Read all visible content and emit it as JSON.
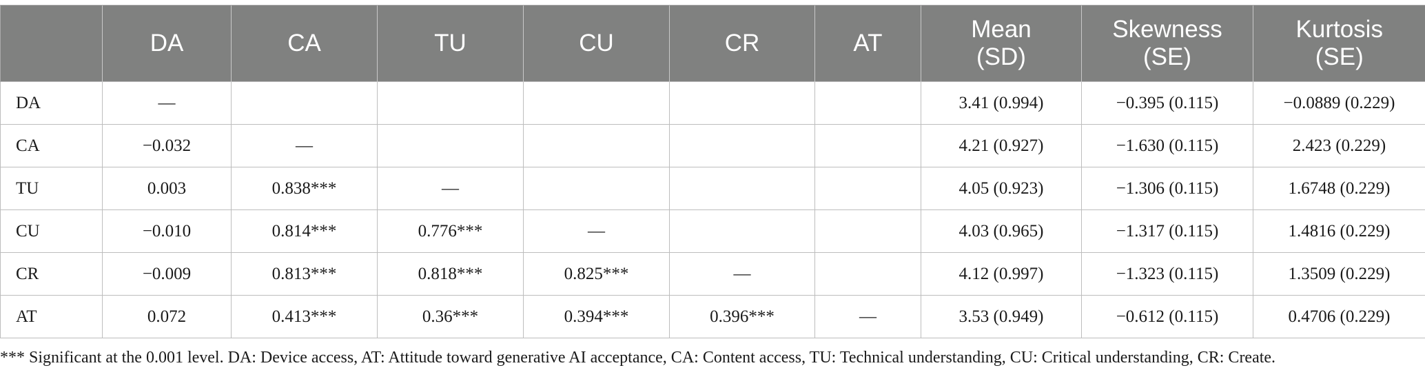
{
  "table": {
    "headers": [
      {
        "lines": [
          ""
        ]
      },
      {
        "lines": [
          "DA"
        ]
      },
      {
        "lines": [
          "CA"
        ]
      },
      {
        "lines": [
          "TU"
        ]
      },
      {
        "lines": [
          "CU"
        ]
      },
      {
        "lines": [
          "CR"
        ]
      },
      {
        "lines": [
          "AT"
        ]
      },
      {
        "lines": [
          "Mean",
          "(SD)"
        ]
      },
      {
        "lines": [
          "Skewness",
          "(SE)"
        ]
      },
      {
        "lines": [
          "Kurtosis",
          "(SE)"
        ]
      }
    ],
    "rows": [
      [
        "DA",
        "—",
        "",
        "",
        "",
        "",
        "",
        "3.41 (0.994)",
        "−0.395 (0.115)",
        "−0.0889 (0.229)"
      ],
      [
        "CA",
        "−0.032",
        "—",
        "",
        "",
        "",
        "",
        "4.21 (0.927)",
        "−1.630 (0.115)",
        "2.423 (0.229)"
      ],
      [
        "TU",
        "0.003",
        "0.838***",
        "—",
        "",
        "",
        "",
        "4.05 (0.923)",
        "−1.306 (0.115)",
        "1.6748 (0.229)"
      ],
      [
        "CU",
        "−0.010",
        "0.814***",
        "0.776***",
        "—",
        "",
        "",
        "4.03 (0.965)",
        "−1.317 (0.115)",
        "1.4816 (0.229)"
      ],
      [
        "CR",
        "−0.009",
        "0.813***",
        "0.818***",
        "0.825***",
        "—",
        "",
        "4.12 (0.997)",
        "−1.323 (0.115)",
        "1.3509 (0.229)"
      ],
      [
        "AT",
        "0.072",
        "0.413***",
        "0.36***",
        "0.394***",
        "0.396***",
        "—",
        "3.53 (0.949)",
        "−0.612 (0.115)",
        "0.4706 (0.229)"
      ]
    ]
  },
  "footnote": "*** Significant at the 0.001 level. DA: Device access, AT: Attitude toward generative AI acceptance, CA: Content access, TU: Technical understanding, CU: Critical understanding, CR: Create.",
  "colors": {
    "header_bg": "#808180",
    "header_text": "#ffffff",
    "grid": "#bdbdbd"
  }
}
